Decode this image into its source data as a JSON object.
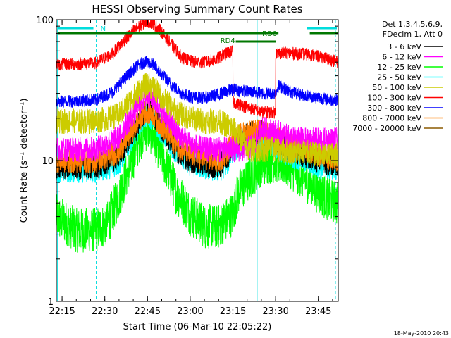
{
  "chart_data": {
    "type": "line",
    "title": "HESSI Observing Summary Count Rates",
    "xlabel": "Start Time (06-Mar-10 22:05:22)",
    "ylabel": "Count Rate (s⁻¹ detector⁻¹)",
    "yscale": "log",
    "ylim": [
      1,
      100
    ],
    "xlim_minutes": [
      8,
      107
    ],
    "x_ticks": [
      {
        "label": "22:15",
        "min": 10
      },
      {
        "label": "22:30",
        "min": 25
      },
      {
        "label": "22:45",
        "min": 40
      },
      {
        "label": "23:00",
        "min": 55
      },
      {
        "label": "23:15",
        "min": 70
      },
      {
        "label": "23:30",
        "min": 85
      },
      {
        "label": "23:45",
        "min": 100
      }
    ],
    "y_ticks": [
      {
        "label": "1",
        "value": 1
      },
      {
        "label": "10",
        "value": 10
      },
      {
        "label": "100",
        "value": 100
      }
    ],
    "legend_header": [
      "Det 1,3,4,5,6,9,",
      "FDecim 1, Att 0"
    ],
    "legend_position": "right",
    "series": [
      {
        "name": "3 - 6 keV",
        "color": "#000000",
        "x": [
          8,
          22,
          30,
          36,
          38,
          40,
          42,
          44,
          50,
          55,
          60,
          65,
          68,
          70,
          75,
          80,
          85,
          90,
          95,
          100,
          105,
          107
        ],
        "y": [
          9,
          9,
          10.5,
          17,
          21,
          23,
          22,
          18,
          12,
          10,
          9.5,
          9,
          10.5,
          13,
          15.5,
          16,
          14,
          12,
          11,
          10,
          9.5,
          9.5
        ]
      },
      {
        "name": "6 - 12 keV",
        "color": "#ff00ff",
        "x": [
          8,
          22,
          30,
          36,
          38,
          40,
          42,
          44,
          50,
          55,
          60,
          65,
          70,
          75,
          78,
          80,
          85,
          90,
          95,
          100,
          105,
          107
        ],
        "y": [
          12,
          12,
          14.5,
          23,
          27,
          29,
          28,
          24,
          16,
          13,
          12,
          12,
          12,
          12,
          13.5,
          17,
          16,
          14.5,
          14,
          14,
          14,
          14
        ]
      },
      {
        "name": "12 - 25 keV",
        "color": "#00ff00",
        "x": [
          8,
          15,
          22,
          26,
          28,
          30,
          34,
          38,
          40,
          42,
          46,
          50,
          55,
          60,
          65,
          70,
          72,
          75,
          78,
          80,
          85,
          90,
          95,
          100,
          104,
          106,
          107
        ],
        "y": [
          4,
          3.2,
          3.2,
          3.6,
          4.5,
          5.5,
          9,
          15,
          17,
          15,
          9.5,
          6,
          4.2,
          3.4,
          3.4,
          4.2,
          6,
          7,
          8.5,
          9.5,
          10,
          9,
          7.5,
          6,
          5.2,
          5,
          5
        ]
      },
      {
        "name": "25 - 50 keV",
        "color": "#00ffff",
        "x": [
          8,
          22,
          30,
          36,
          38,
          40,
          42,
          44,
          50,
          55,
          60,
          65,
          68,
          70,
          75,
          80,
          85,
          90,
          95,
          100,
          105,
          107
        ],
        "y": [
          8.5,
          8.5,
          9.5,
          16,
          19.5,
          21,
          20,
          17,
          11.5,
          9.5,
          9,
          8.5,
          9.5,
          12,
          14,
          14,
          12.5,
          11,
          10,
          9,
          8.8,
          8.8
        ]
      },
      {
        "name": "50 - 100 keV",
        "color": "#cccc00",
        "x": [
          8,
          22,
          30,
          35,
          38,
          40,
          42,
          45,
          50,
          55,
          60,
          65,
          70,
          75,
          80,
          85,
          90,
          95,
          100,
          105,
          107
        ],
        "y": [
          19,
          19,
          21,
          28,
          33,
          34.5,
          33,
          28,
          22,
          20,
          19,
          19,
          17,
          12,
          12,
          12,
          11.5,
          11.5,
          11,
          11,
          11
        ]
      },
      {
        "name": "100 - 300 keV",
        "color": "#ff0000",
        "x": [
          8,
          22,
          28,
          32,
          36,
          38,
          40,
          42,
          44,
          48,
          52,
          56,
          60,
          64,
          68,
          70,
          70.1,
          75,
          80,
          85,
          85.1,
          90,
          95,
          100,
          104,
          107
        ],
        "y": [
          48,
          49,
          58,
          72,
          86,
          93,
          97,
          94,
          86,
          68,
          54,
          50,
          50,
          52,
          58,
          60,
          26,
          24,
          22,
          22,
          58,
          58,
          57,
          55,
          52,
          50
        ]
      },
      {
        "name": "300 - 800 keV",
        "color": "#0000ff",
        "x": [
          8,
          22,
          28,
          32,
          36,
          38,
          40,
          42,
          44,
          48,
          52,
          56,
          60,
          64,
          68,
          70,
          75,
          80,
          85,
          86,
          90,
          95,
          100,
          104,
          107
        ],
        "y": [
          26,
          27,
          31,
          38,
          46,
          49,
          50,
          48,
          43,
          35,
          30,
          28,
          28,
          29,
          31,
          32,
          31,
          30,
          30,
          34,
          31,
          29,
          28,
          27,
          27
        ]
      },
      {
        "name": "800 - 7000 keV",
        "color": "#ff8000",
        "x": [
          8,
          22,
          30,
          36,
          38,
          40,
          42,
          44,
          50,
          55,
          60,
          65,
          68,
          70,
          75,
          80,
          85,
          90,
          95,
          100,
          105,
          107
        ],
        "y": [
          10,
          10,
          11.5,
          18,
          21,
          22.5,
          21.5,
          18.5,
          13,
          11,
          10.5,
          10,
          11.5,
          14,
          16,
          16,
          14.5,
          13,
          12,
          11,
          10.5,
          10
        ]
      },
      {
        "name": "7000 - 20000 keV",
        "color": "#8b5a00",
        "x": [],
        "y": []
      }
    ],
    "annotations": [
      {
        "text": "N",
        "color": "#00dddd"
      },
      {
        "text": "RD0",
        "color": "#007700"
      },
      {
        "text": "RD4",
        "color": "#007700"
      }
    ],
    "timestamp": "18-May-2010 20:43"
  }
}
